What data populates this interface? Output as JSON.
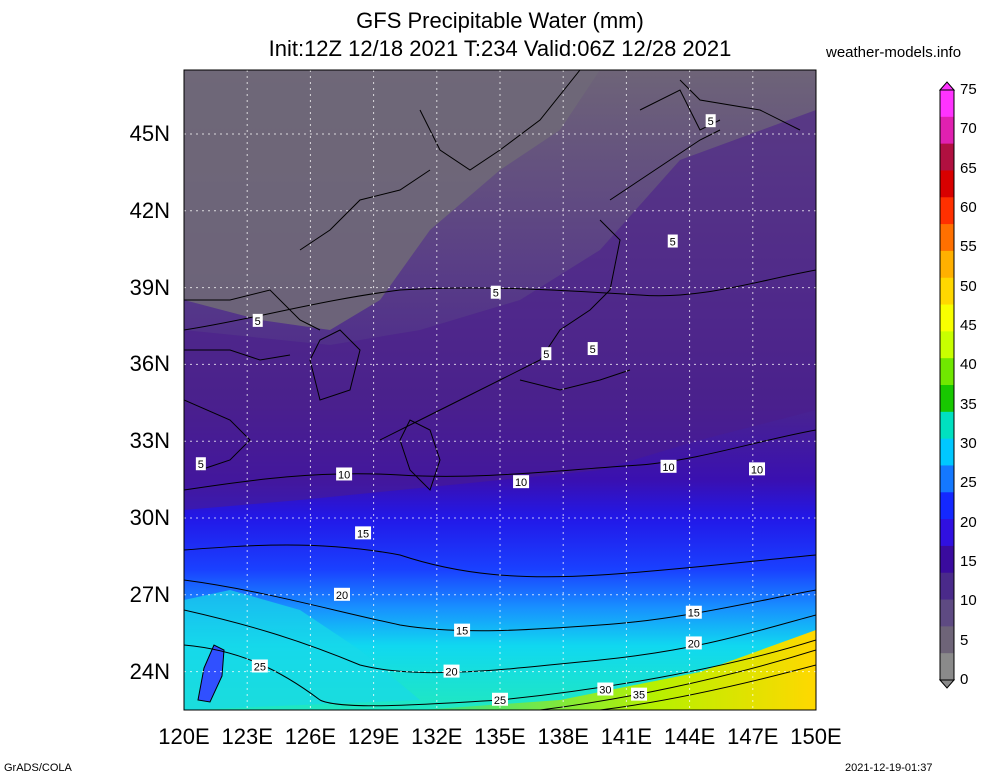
{
  "title": {
    "line1": "GFS Precipitable Water (mm)",
    "line2": "Init:12Z 12/18 2021 T:234 Valid:06Z 12/28 2021"
  },
  "site": "weather-models.info",
  "credits": {
    "left": "GrADS/COLA",
    "right": "2021-12-19-01:37"
  },
  "map": {
    "lon_range": [
      120,
      150
    ],
    "lat_range": [
      22.5,
      47.5
    ],
    "lat_ticks": [
      "24N",
      "27N",
      "30N",
      "33N",
      "36N",
      "39N",
      "42N",
      "45N"
    ],
    "lon_ticks": [
      "120E",
      "123E",
      "126E",
      "129E",
      "132E",
      "135E",
      "138E",
      "141E",
      "144E",
      "147E",
      "150E"
    ],
    "contour_labels": [
      {
        "text": "5",
        "lon": 145.0,
        "lat": 45.5
      },
      {
        "text": "5",
        "lon": 143.2,
        "lat": 40.8
      },
      {
        "text": "5",
        "lon": 134.8,
        "lat": 38.8
      },
      {
        "text": "5",
        "lon": 123.5,
        "lat": 37.7
      },
      {
        "text": "5",
        "lon": 137.2,
        "lat": 36.4
      },
      {
        "text": "5",
        "lon": 139.4,
        "lat": 36.6
      },
      {
        "text": "5",
        "lon": 120.8,
        "lat": 32.1
      },
      {
        "text": "10",
        "lon": 127.6,
        "lat": 31.7
      },
      {
        "text": "10",
        "lon": 136.0,
        "lat": 31.4
      },
      {
        "text": "10",
        "lon": 143.0,
        "lat": 32.0
      },
      {
        "text": "10",
        "lon": 147.2,
        "lat": 31.9
      },
      {
        "text": "15",
        "lon": 128.5,
        "lat": 29.4
      },
      {
        "text": "15",
        "lon": 144.2,
        "lat": 26.3
      },
      {
        "text": "15",
        "lon": 133.2,
        "lat": 25.6
      },
      {
        "text": "20",
        "lon": 127.5,
        "lat": 27.0
      },
      {
        "text": "20",
        "lon": 144.2,
        "lat": 25.1
      },
      {
        "text": "20",
        "lon": 132.7,
        "lat": 24.0
      },
      {
        "text": "25",
        "lon": 123.6,
        "lat": 24.2
      },
      {
        "text": "25",
        "lon": 135.0,
        "lat": 22.9
      },
      {
        "text": "30",
        "lon": 140.0,
        "lat": 23.3
      },
      {
        "text": "35",
        "lon": 141.6,
        "lat": 23.1
      }
    ]
  },
  "colorbar": {
    "labels": [
      "75",
      "70",
      "65",
      "60",
      "55",
      "50",
      "45",
      "40",
      "35",
      "30",
      "25",
      "20",
      "15",
      "10",
      "5",
      "0"
    ],
    "colors": [
      "#ff33ff",
      "#e020b0",
      "#b01040",
      "#d80000",
      "#ff3000",
      "#ff7000",
      "#ffb000",
      "#ffd800",
      "#f8ff00",
      "#c8ff00",
      "#70e800",
      "#18c800",
      "#00e0c0",
      "#00c8ff",
      "#1478ff",
      "#1428ff",
      "#3010e0",
      "#3a0b9e",
      "#4a2a8a",
      "#5e4a82",
      "#6e6478",
      "#8a8a8a"
    ]
  }
}
